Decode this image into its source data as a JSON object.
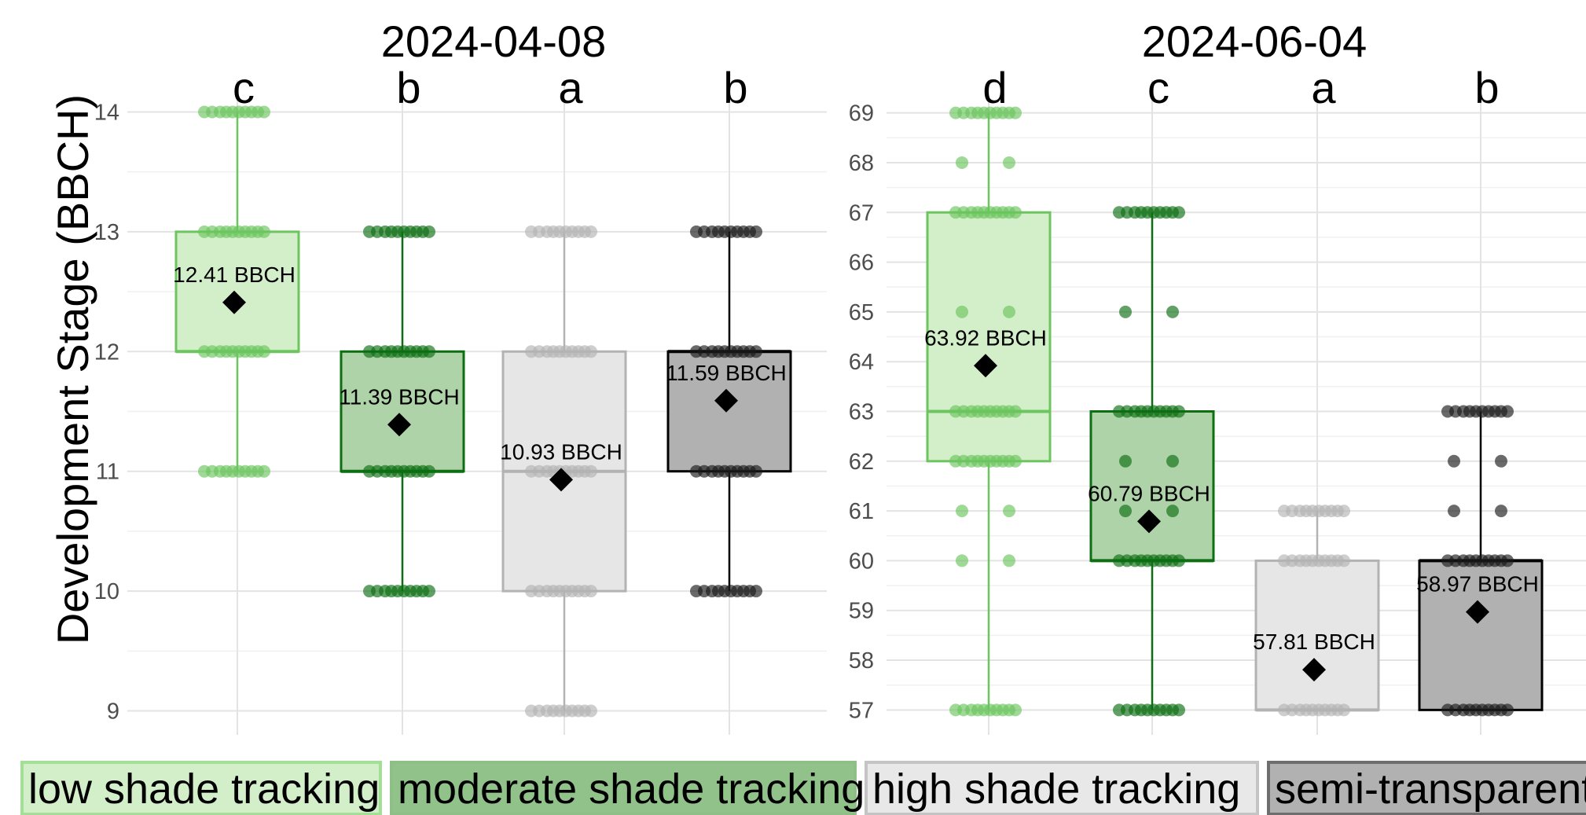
{
  "chart_data": {
    "type": "boxplot",
    "ylabel": "Development Stage (BBCH)",
    "xlabel": "",
    "categories": [
      "low shade tracking",
      "moderate shade tracking",
      "high shade tracking",
      "semi-transparent"
    ],
    "colors": {
      "low shade tracking": {
        "fill": "#d3efc9",
        "stroke": "#6cc55e",
        "point": "#6cc55e"
      },
      "moderate shade tracking": {
        "fill": "#afd3a8",
        "stroke": "#0d6e12",
        "point": "#0d6e12"
      },
      "high shade tracking": {
        "fill": "#e6e6e6",
        "stroke": "#b3b3b3",
        "point": "#b3b3b3"
      },
      "semi-transparent": {
        "fill": "#b1b1b1",
        "stroke": "#000000",
        "point": "#1a1a1a"
      }
    },
    "panels": [
      {
        "title": "2024-04-08",
        "ylim": [
          8.8,
          14.2
        ],
        "yticks": [
          9,
          10,
          11,
          12,
          13,
          14
        ],
        "boxes": [
          {
            "category": "low shade tracking",
            "letter": "c",
            "whisker_low": 11,
            "q1": 12,
            "median": 12,
            "q3": 13,
            "whisker_high": 14,
            "mean": 12.41,
            "mean_label": "12.41 BBCH",
            "points": [
              11,
              12,
              13,
              14
            ]
          },
          {
            "category": "moderate shade tracking",
            "letter": "b",
            "whisker_low": 10,
            "q1": 11,
            "median": 11,
            "q3": 12,
            "whisker_high": 13,
            "mean": 11.39,
            "mean_label": "11.39 BBCH",
            "points": [
              10,
              11,
              12,
              13
            ]
          },
          {
            "category": "high shade tracking",
            "letter": "a",
            "whisker_low": 9,
            "q1": 10,
            "median": 11,
            "q3": 12,
            "whisker_high": 13,
            "mean": 10.93,
            "mean_label": "10.93 BBCH",
            "points": [
              9,
              10,
              11,
              12,
              13
            ]
          },
          {
            "category": "semi-transparent",
            "letter": "b",
            "whisker_low": 10,
            "q1": 11,
            "median": 12,
            "q3": 12,
            "whisker_high": 13,
            "mean": 11.59,
            "mean_label": "11.59 BBCH",
            "points": [
              10,
              11,
              12,
              13
            ]
          }
        ]
      },
      {
        "title": "2024-06-04",
        "ylim": [
          56.5,
          69.5
        ],
        "yticks": [
          57,
          58,
          59,
          60,
          61,
          62,
          63,
          64,
          65,
          66,
          67,
          68,
          69
        ],
        "boxes": [
          {
            "category": "low shade tracking",
            "letter": "d",
            "whisker_low": 57,
            "q1": 62,
            "median": 63,
            "q3": 67,
            "whisker_high": 69,
            "mean": 63.92,
            "mean_label": "63.92 BBCH",
            "points": [
              57,
              60,
              61,
              62,
              63,
              65,
              67,
              68,
              69
            ]
          },
          {
            "category": "moderate shade tracking",
            "letter": "c",
            "whisker_low": 57,
            "q1": 60,
            "median": 60,
            "q3": 63,
            "whisker_high": 67,
            "mean": 60.79,
            "mean_label": "60.79 BBCH",
            "points": [
              57,
              60,
              61,
              62,
              63,
              65,
              67
            ]
          },
          {
            "category": "high shade tracking",
            "letter": "a",
            "whisker_low": 57,
            "q1": 57,
            "median": 57,
            "q3": 60,
            "whisker_high": 61,
            "mean": 57.81,
            "mean_label": "57.81 BBCH",
            "points": [
              57,
              60,
              61
            ]
          },
          {
            "category": "semi-transparent",
            "letter": "b",
            "whisker_low": 57,
            "q1": 57,
            "median": 60,
            "q3": 60,
            "whisker_high": 63,
            "mean": 58.97,
            "mean_label": "58.97 BBCH",
            "points": [
              57,
              60,
              61,
              62,
              63
            ]
          }
        ]
      }
    ],
    "grid": true,
    "legend_position": "bottom"
  }
}
